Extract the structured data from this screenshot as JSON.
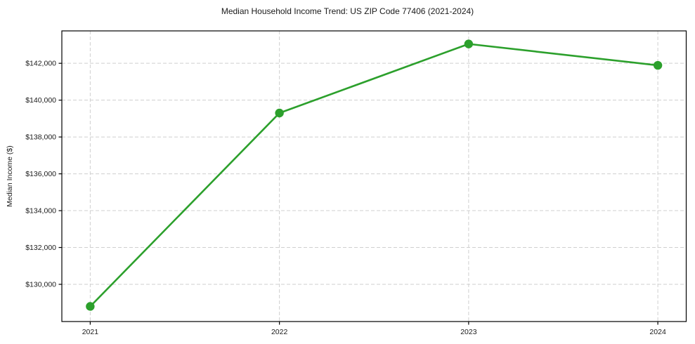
{
  "chart_data": {
    "type": "line",
    "title": "Median Household Income Trend: US ZIP Code 77406 (2021-2024)",
    "xlabel": "",
    "ylabel": "Median Income ($)",
    "categories": [
      "2021",
      "2022",
      "2023",
      "2024"
    ],
    "series": [
      {
        "name": "Median Household Income",
        "values": [
          128800,
          139300,
          143050,
          141890
        ],
        "color": "#2ca02c"
      }
    ],
    "ylim": [
      127980,
      143760
    ],
    "yticks": [
      130000,
      132000,
      134000,
      136000,
      138000,
      140000,
      142000
    ],
    "ytick_labels": [
      "$130,000",
      "$132,000",
      "$134,000",
      "$136,000",
      "$138,000",
      "$140,000",
      "$142,000"
    ],
    "x_margin_frac": 0.05,
    "grid": true,
    "grid_style": "dashed",
    "legend_position": "none",
    "marker": "circle"
  },
  "colors": {
    "line": "#2ca02c",
    "grid": "#cfcfcf",
    "spine": "#000000",
    "text": "#1a1a1a",
    "background": "#ffffff"
  }
}
